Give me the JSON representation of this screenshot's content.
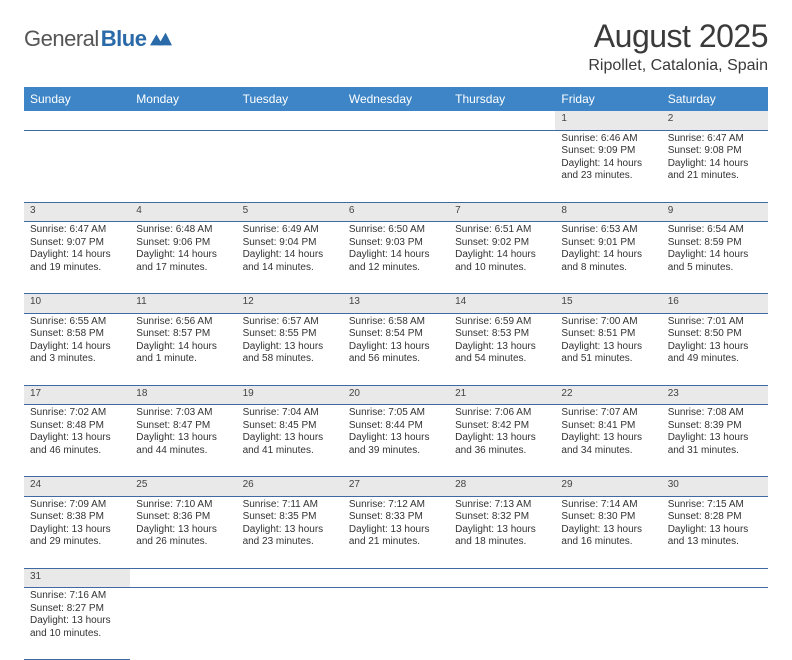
{
  "logo": {
    "part1": "General",
    "part2": "Blue"
  },
  "title": "August 2025",
  "location": "Ripollet, Catalonia, Spain",
  "colors": {
    "header_bg": "#3d85c6",
    "header_text": "#ffffff",
    "daynum_bg": "#e9e9e9",
    "row_border": "#3d6aa0",
    "logo_gray": "#555555",
    "logo_blue": "#2b6aa8"
  },
  "weekdays": [
    "Sunday",
    "Monday",
    "Tuesday",
    "Wednesday",
    "Thursday",
    "Friday",
    "Saturday"
  ],
  "weeks": [
    [
      null,
      null,
      null,
      null,
      null,
      {
        "n": "1",
        "sr": "6:46 AM",
        "ss": "9:09 PM",
        "d1": "Daylight: 14 hours",
        "d2": "and 23 minutes."
      },
      {
        "n": "2",
        "sr": "6:47 AM",
        "ss": "9:08 PM",
        "d1": "Daylight: 14 hours",
        "d2": "and 21 minutes."
      }
    ],
    [
      {
        "n": "3",
        "sr": "6:47 AM",
        "ss": "9:07 PM",
        "d1": "Daylight: 14 hours",
        "d2": "and 19 minutes."
      },
      {
        "n": "4",
        "sr": "6:48 AM",
        "ss": "9:06 PM",
        "d1": "Daylight: 14 hours",
        "d2": "and 17 minutes."
      },
      {
        "n": "5",
        "sr": "6:49 AM",
        "ss": "9:04 PM",
        "d1": "Daylight: 14 hours",
        "d2": "and 14 minutes."
      },
      {
        "n": "6",
        "sr": "6:50 AM",
        "ss": "9:03 PM",
        "d1": "Daylight: 14 hours",
        "d2": "and 12 minutes."
      },
      {
        "n": "7",
        "sr": "6:51 AM",
        "ss": "9:02 PM",
        "d1": "Daylight: 14 hours",
        "d2": "and 10 minutes."
      },
      {
        "n": "8",
        "sr": "6:53 AM",
        "ss": "9:01 PM",
        "d1": "Daylight: 14 hours",
        "d2": "and 8 minutes."
      },
      {
        "n": "9",
        "sr": "6:54 AM",
        "ss": "8:59 PM",
        "d1": "Daylight: 14 hours",
        "d2": "and 5 minutes."
      }
    ],
    [
      {
        "n": "10",
        "sr": "6:55 AM",
        "ss": "8:58 PM",
        "d1": "Daylight: 14 hours",
        "d2": "and 3 minutes."
      },
      {
        "n": "11",
        "sr": "6:56 AM",
        "ss": "8:57 PM",
        "d1": "Daylight: 14 hours",
        "d2": "and 1 minute."
      },
      {
        "n": "12",
        "sr": "6:57 AM",
        "ss": "8:55 PM",
        "d1": "Daylight: 13 hours",
        "d2": "and 58 minutes."
      },
      {
        "n": "13",
        "sr": "6:58 AM",
        "ss": "8:54 PM",
        "d1": "Daylight: 13 hours",
        "d2": "and 56 minutes."
      },
      {
        "n": "14",
        "sr": "6:59 AM",
        "ss": "8:53 PM",
        "d1": "Daylight: 13 hours",
        "d2": "and 54 minutes."
      },
      {
        "n": "15",
        "sr": "7:00 AM",
        "ss": "8:51 PM",
        "d1": "Daylight: 13 hours",
        "d2": "and 51 minutes."
      },
      {
        "n": "16",
        "sr": "7:01 AM",
        "ss": "8:50 PM",
        "d1": "Daylight: 13 hours",
        "d2": "and 49 minutes."
      }
    ],
    [
      {
        "n": "17",
        "sr": "7:02 AM",
        "ss": "8:48 PM",
        "d1": "Daylight: 13 hours",
        "d2": "and 46 minutes."
      },
      {
        "n": "18",
        "sr": "7:03 AM",
        "ss": "8:47 PM",
        "d1": "Daylight: 13 hours",
        "d2": "and 44 minutes."
      },
      {
        "n": "19",
        "sr": "7:04 AM",
        "ss": "8:45 PM",
        "d1": "Daylight: 13 hours",
        "d2": "and 41 minutes."
      },
      {
        "n": "20",
        "sr": "7:05 AM",
        "ss": "8:44 PM",
        "d1": "Daylight: 13 hours",
        "d2": "and 39 minutes."
      },
      {
        "n": "21",
        "sr": "7:06 AM",
        "ss": "8:42 PM",
        "d1": "Daylight: 13 hours",
        "d2": "and 36 minutes."
      },
      {
        "n": "22",
        "sr": "7:07 AM",
        "ss": "8:41 PM",
        "d1": "Daylight: 13 hours",
        "d2": "and 34 minutes."
      },
      {
        "n": "23",
        "sr": "7:08 AM",
        "ss": "8:39 PM",
        "d1": "Daylight: 13 hours",
        "d2": "and 31 minutes."
      }
    ],
    [
      {
        "n": "24",
        "sr": "7:09 AM",
        "ss": "8:38 PM",
        "d1": "Daylight: 13 hours",
        "d2": "and 29 minutes."
      },
      {
        "n": "25",
        "sr": "7:10 AM",
        "ss": "8:36 PM",
        "d1": "Daylight: 13 hours",
        "d2": "and 26 minutes."
      },
      {
        "n": "26",
        "sr": "7:11 AM",
        "ss": "8:35 PM",
        "d1": "Daylight: 13 hours",
        "d2": "and 23 minutes."
      },
      {
        "n": "27",
        "sr": "7:12 AM",
        "ss": "8:33 PM",
        "d1": "Daylight: 13 hours",
        "d2": "and 21 minutes."
      },
      {
        "n": "28",
        "sr": "7:13 AM",
        "ss": "8:32 PM",
        "d1": "Daylight: 13 hours",
        "d2": "and 18 minutes."
      },
      {
        "n": "29",
        "sr": "7:14 AM",
        "ss": "8:30 PM",
        "d1": "Daylight: 13 hours",
        "d2": "and 16 minutes."
      },
      {
        "n": "30",
        "sr": "7:15 AM",
        "ss": "8:28 PM",
        "d1": "Daylight: 13 hours",
        "d2": "and 13 minutes."
      }
    ],
    [
      {
        "n": "31",
        "sr": "7:16 AM",
        "ss": "8:27 PM",
        "d1": "Daylight: 13 hours",
        "d2": "and 10 minutes."
      },
      null,
      null,
      null,
      null,
      null,
      null
    ]
  ],
  "labels": {
    "sunrise_prefix": "Sunrise: ",
    "sunset_prefix": "Sunset: "
  }
}
